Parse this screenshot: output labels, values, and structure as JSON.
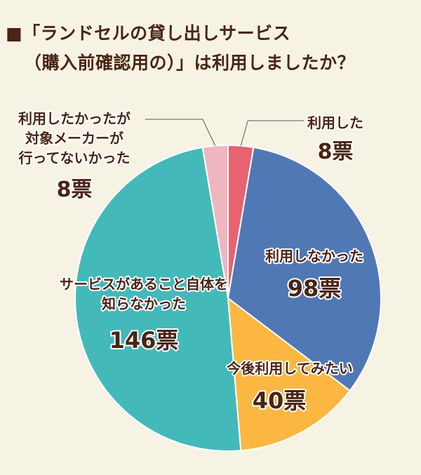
{
  "title": {
    "line1": "■「ランドセルの貸し出しサービス",
    "line2": "（購入前確認用の）」は利用しましたか？"
  },
  "colors": {
    "title_text": "#4a2414",
    "label_text": "#4a2414",
    "slice_label_text": "#ffffff"
  },
  "chart_data": {
    "type": "pie",
    "title": "■「ランドセルの貸し出しサービス（購入前確認用の）」は利用しましたか？",
    "unit": "票",
    "slices": [
      {
        "label": "利用した",
        "value": 8,
        "value_text": "8票",
        "color": "#e8626f"
      },
      {
        "label": "利用しなかった",
        "value": 98,
        "value_text": "98票",
        "color": "#5078b4"
      },
      {
        "label": "今後利用してみたい",
        "value": 40,
        "value_text": "40票",
        "color": "#fbb741"
      },
      {
        "label": "サービスがあること自体を知らなかった",
        "value": 146,
        "value_text": "146票",
        "color": "#43b9b9"
      },
      {
        "label": "利用したかったが対象メーカーが行ってないかった",
        "value": 8,
        "value_text": "8票",
        "color": "#f0b6c0"
      }
    ]
  }
}
